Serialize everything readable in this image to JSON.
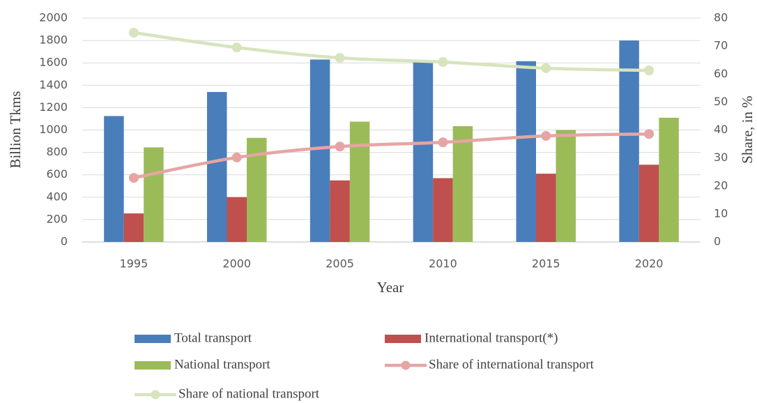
{
  "chart_data": {
    "type": "bar",
    "x_label": "Year",
    "y_label": "Billion Tkms",
    "y2_label": "Share, in %",
    "categories": [
      "1995",
      "2000",
      "2005",
      "2010",
      "2015",
      "2020"
    ],
    "series": [
      {
        "name": "Total transport",
        "type": "bar",
        "color": "#4a7ebb",
        "values": [
          1125,
          1340,
          1630,
          1610,
          1615,
          1800
        ]
      },
      {
        "name": "International transport(*)",
        "type": "bar",
        "color": "#c0504d",
        "values": [
          255,
          400,
          550,
          570,
          610,
          690
        ]
      },
      {
        "name": "National transport",
        "type": "bar",
        "color": "#9bbb59",
        "values": [
          845,
          930,
          1075,
          1035,
          1000,
          1110
        ]
      },
      {
        "name": "Share of international transport",
        "type": "line",
        "axis": "y2",
        "color": "#e6a5a4",
        "values": [
          22.9,
          30.2,
          34.1,
          35.6,
          37.9,
          38.6
        ]
      },
      {
        "name": "Share of national transport",
        "type": "line",
        "axis": "y2",
        "color": "#d7e4bd",
        "values": [
          74.8,
          69.5,
          65.8,
          64.3,
          62.1,
          61.3
        ]
      }
    ],
    "ylim": [
      0,
      2000
    ],
    "yticks": [
      0,
      200,
      400,
      600,
      800,
      1000,
      1200,
      1400,
      1600,
      1800,
      2000
    ],
    "y2lim": [
      0,
      80
    ],
    "y2ticks": [
      0,
      10,
      20,
      30,
      40,
      50,
      60,
      70,
      80
    ],
    "grid": true,
    "legend": "bottom"
  }
}
